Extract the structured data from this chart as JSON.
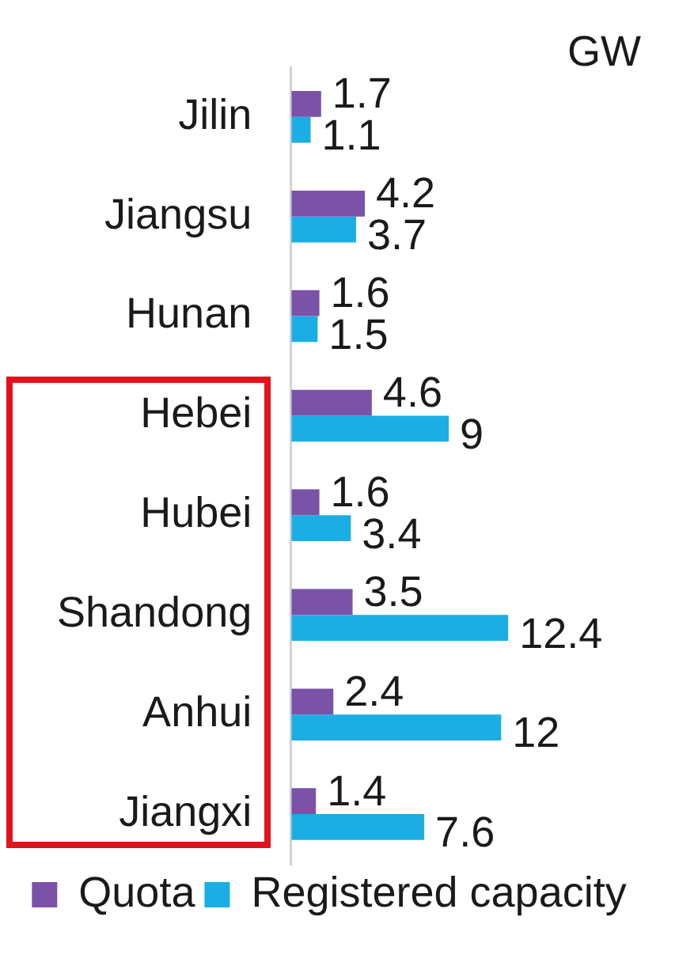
{
  "chart_data": {
    "type": "bar",
    "orientation": "horizontal",
    "xlabel": "GW",
    "categories": [
      "Jilin",
      "Jiangsu",
      "Hunan",
      "Hebei",
      "Hubei",
      "Shandong",
      "Anhui",
      "Jiangxi"
    ],
    "series": [
      {
        "name": "Quota",
        "color": "#7a53a8",
        "values": [
          1.7,
          4.2,
          1.6,
          4.6,
          1.6,
          3.5,
          2.4,
          1.4
        ]
      },
      {
        "name": "Registered capacity",
        "color": "#1aaee5",
        "values": [
          1.1,
          3.7,
          1.5,
          9,
          3.4,
          12.4,
          12,
          7.6
        ]
      }
    ],
    "data_labels": true,
    "legend": "bottom",
    "tick_labels": "y",
    "grid": false
  }
}
